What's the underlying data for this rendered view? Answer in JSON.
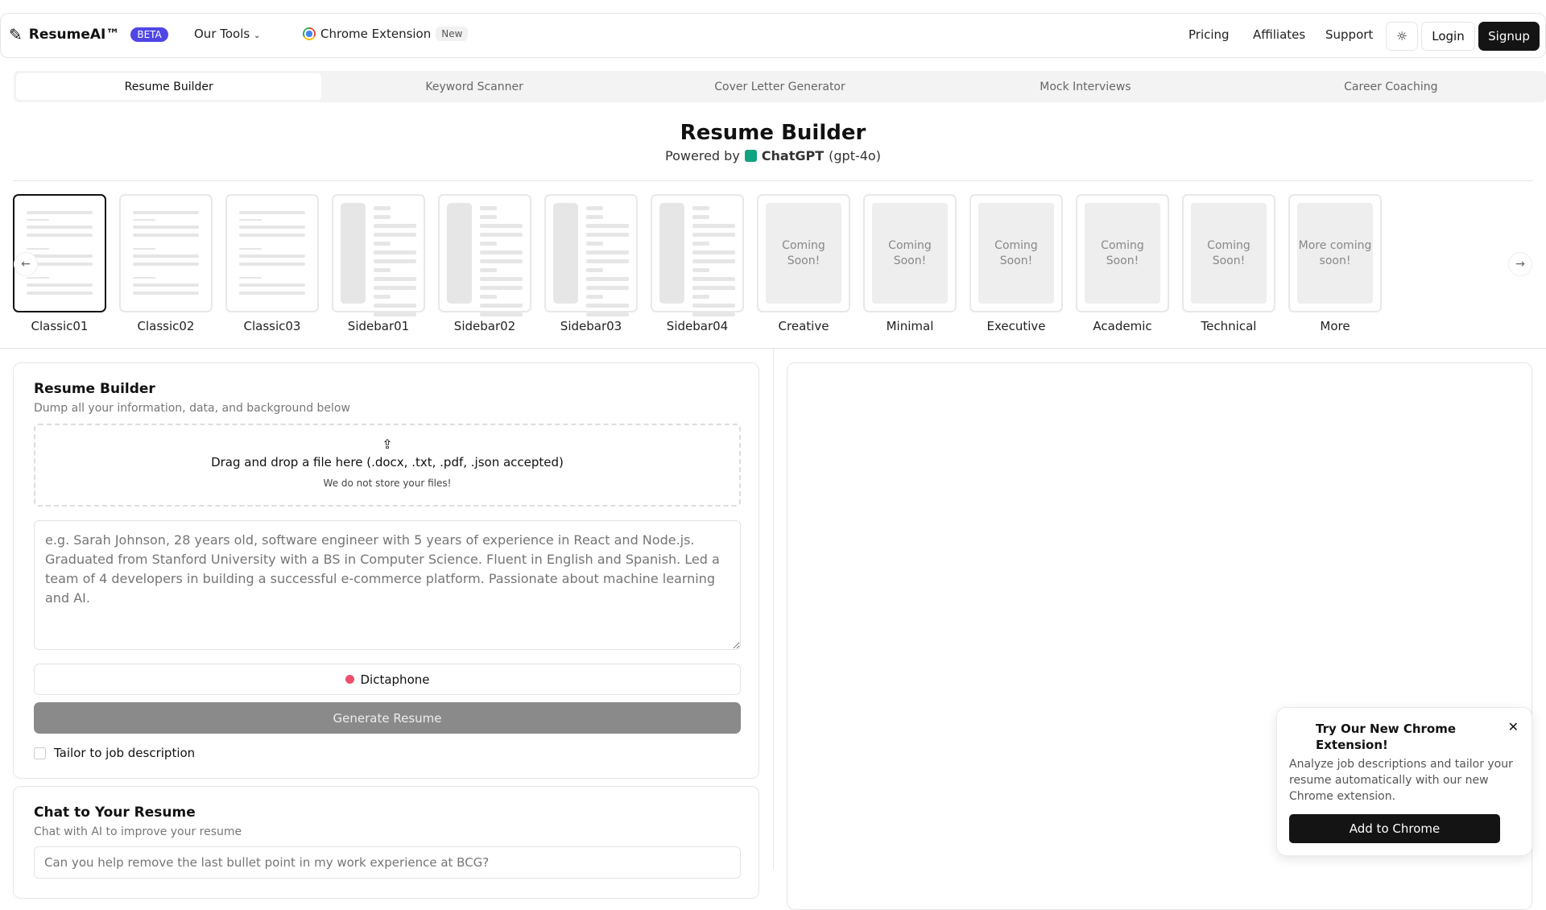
{
  "header": {
    "logo": "ResumeAI™",
    "beta": "BETA",
    "our_tools": "Our Tools",
    "chrome_ext": "Chrome Extension",
    "new_badge": "New",
    "pricing": "Pricing",
    "affiliates": "Affiliates",
    "support": "Support",
    "login": "Login",
    "signup": "Signup"
  },
  "tabs": [
    {
      "label": "Resume Builder",
      "active": true
    },
    {
      "label": "Keyword Scanner"
    },
    {
      "label": "Cover Letter Generator"
    },
    {
      "label": "Mock Interviews"
    },
    {
      "label": "Career Coaching"
    }
  ],
  "page": {
    "title": "Resume Builder",
    "powered_by": "Powered by",
    "model": "ChatGPT",
    "model_version": "(gpt-4o)"
  },
  "templates": [
    {
      "label": "Classic01",
      "kind": "classic",
      "selected": true
    },
    {
      "label": "Classic02",
      "kind": "classic"
    },
    {
      "label": "Classic03",
      "kind": "classic"
    },
    {
      "label": "Sidebar01",
      "kind": "sidebar"
    },
    {
      "label": "Sidebar02",
      "kind": "sidebar"
    },
    {
      "label": "Sidebar03",
      "kind": "sidebar"
    },
    {
      "label": "Sidebar04",
      "kind": "sidebar"
    },
    {
      "label": "Creative",
      "kind": "soon",
      "text": "Coming Soon!"
    },
    {
      "label": "Minimal",
      "kind": "soon",
      "text": "Coming Soon!"
    },
    {
      "label": "Executive",
      "kind": "soon",
      "text": "Coming Soon!"
    },
    {
      "label": "Academic",
      "kind": "soon",
      "text": "Coming Soon!"
    },
    {
      "label": "Technical",
      "kind": "soon",
      "text": "Coming Soon!"
    },
    {
      "label": "More",
      "kind": "soon",
      "text": "More coming soon!"
    }
  ],
  "builder": {
    "title": "Resume Builder",
    "subtitle": "Dump all your information, data, and background below",
    "drop_text": "Drag and drop a file here (.docx, .txt, .pdf, .json accepted)",
    "drop_note": "We do not store your files!",
    "placeholder": "e.g. Sarah Johnson, 28 years old, software engineer with 5 years of experience in React and Node.js. Graduated from Stanford University with a BS in Computer Science. Fluent in English and Spanish. Led a team of 4 developers in building a successful e-commerce platform. Passionate about machine learning and AI.",
    "dictaphone": "Dictaphone",
    "generate": "Generate Resume",
    "tailor": "Tailor to job description"
  },
  "chat": {
    "title": "Chat to Your Resume",
    "subtitle": "Chat with AI to improve your resume",
    "placeholder": "Can you help remove the last bullet point in my work experience at BCG?"
  },
  "popup": {
    "title": "Try Our New Chrome Extension!",
    "body": "Analyze job descriptions and tailor your resume automatically with our new Chrome extension.",
    "button": "Add to Chrome"
  },
  "colors": {
    "beta": "#4f46e5",
    "dark": "#141414",
    "generate_disabled": "#8a8a8a",
    "dictaphone_dot": "#ef4f6b"
  }
}
